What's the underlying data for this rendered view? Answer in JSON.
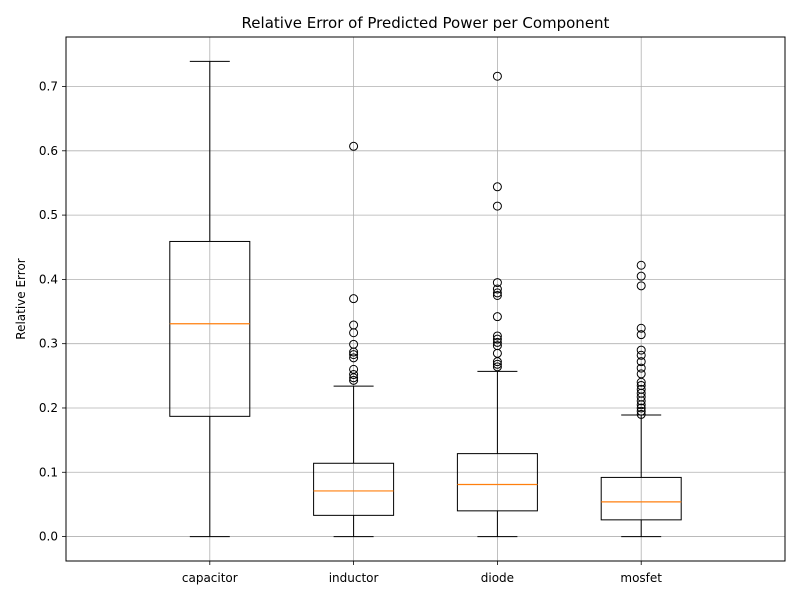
{
  "chart_data": {
    "type": "box",
    "title": "Relative Error of Predicted Power per Component",
    "xlabel": "",
    "ylabel": "Relative Error",
    "ylim": [
      -0.038,
      0.777
    ],
    "yticks": [
      0.0,
      0.1,
      0.2,
      0.3,
      0.4,
      0.5,
      0.6,
      0.7
    ],
    "ytick_labels": [
      "0.0",
      "0.1",
      "0.2",
      "0.3",
      "0.4",
      "0.5",
      "0.6",
      "0.7"
    ],
    "grid": true,
    "categories": [
      "capacitor",
      "inductor",
      "diode",
      "mosfet"
    ],
    "boxes": [
      {
        "name": "capacitor",
        "whisker_low": 0.0,
        "q1": 0.187,
        "median": 0.331,
        "q3": 0.459,
        "whisker_high": 0.739,
        "outliers": []
      },
      {
        "name": "inductor",
        "whisker_low": 0.0,
        "q1": 0.033,
        "median": 0.071,
        "q3": 0.114,
        "whisker_high": 0.234,
        "outliers": [
          0.243,
          0.247,
          0.252,
          0.26,
          0.278,
          0.283,
          0.287,
          0.299,
          0.317,
          0.329,
          0.37,
          0.607
        ]
      },
      {
        "name": "diode",
        "whisker_low": 0.0,
        "q1": 0.04,
        "median": 0.081,
        "q3": 0.129,
        "whisker_high": 0.257,
        "outliers": [
          0.264,
          0.268,
          0.272,
          0.285,
          0.297,
          0.302,
          0.307,
          0.312,
          0.342,
          0.375,
          0.379,
          0.385,
          0.395,
          0.514,
          0.544,
          0.716
        ]
      },
      {
        "name": "mosfet",
        "whisker_low": 0.0,
        "q1": 0.026,
        "median": 0.054,
        "q3": 0.092,
        "whisker_high": 0.189,
        "outliers": [
          0.19,
          0.195,
          0.2,
          0.205,
          0.211,
          0.217,
          0.223,
          0.229,
          0.235,
          0.24,
          0.253,
          0.262,
          0.272,
          0.282,
          0.29,
          0.314,
          0.324,
          0.39,
          0.405,
          0.422
        ]
      }
    ],
    "colors": {
      "box": "#000000",
      "median": "#ff7f0e",
      "grid": "#b0b0b0",
      "background": "#ffffff"
    }
  }
}
